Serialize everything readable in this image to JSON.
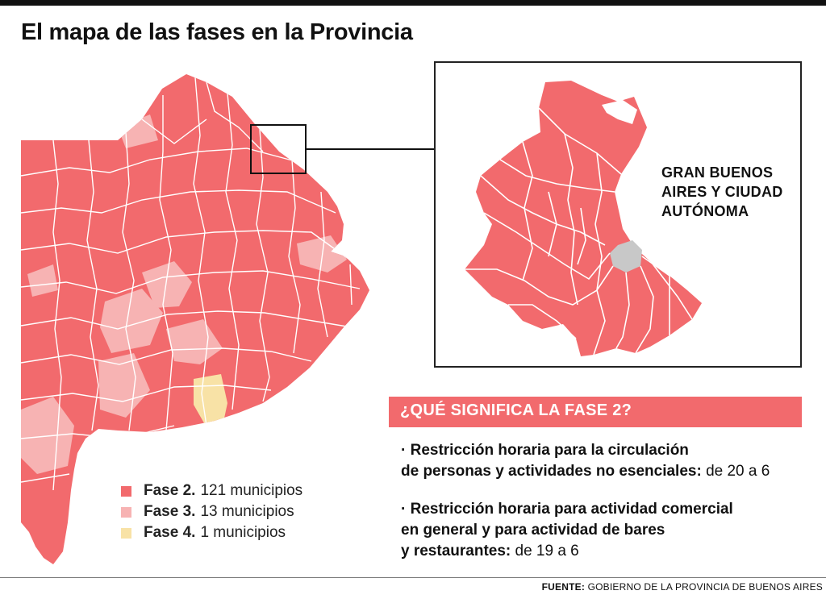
{
  "title": "El mapa de las fases en la Provincia",
  "inset": {
    "label_lines": [
      "GRAN BUENOS",
      "AIRES Y CIUDAD",
      "AUTÓNOMA"
    ]
  },
  "legend": [
    {
      "label": "Fase 2.",
      "value": "121 municipios",
      "color": "#f26a6d"
    },
    {
      "label": "Fase 3.",
      "value": "13 municipios",
      "color": "#f7b3b3"
    },
    {
      "label": "Fase 4.",
      "value": "1 municipios",
      "color": "#f8e2a6"
    }
  ],
  "banner": "¿QUÉ SIGNIFICA LA FASE 2?",
  "bullets": [
    {
      "strong_1": "· Restricción horaria para la circulación",
      "strong_2": "de personas y actividades no esenciales:",
      "normal": " de 20 a 6"
    },
    {
      "strong_1": "· Restricción horaria para actividad comercial",
      "strong_2": "en general y para actividad de bares",
      "strong_3": "y restaurantes:",
      "normal": " de 19 a 6"
    }
  ],
  "footer": {
    "label": "FUENTE:",
    "text": " GOBIERNO DE LA PROVINCIA DE BUENOS AIRES"
  },
  "colors": {
    "phase2": "#f26a6d",
    "phase3": "#f7b3b3",
    "phase4": "#f8e2a6",
    "city": "#c8c8c8"
  }
}
